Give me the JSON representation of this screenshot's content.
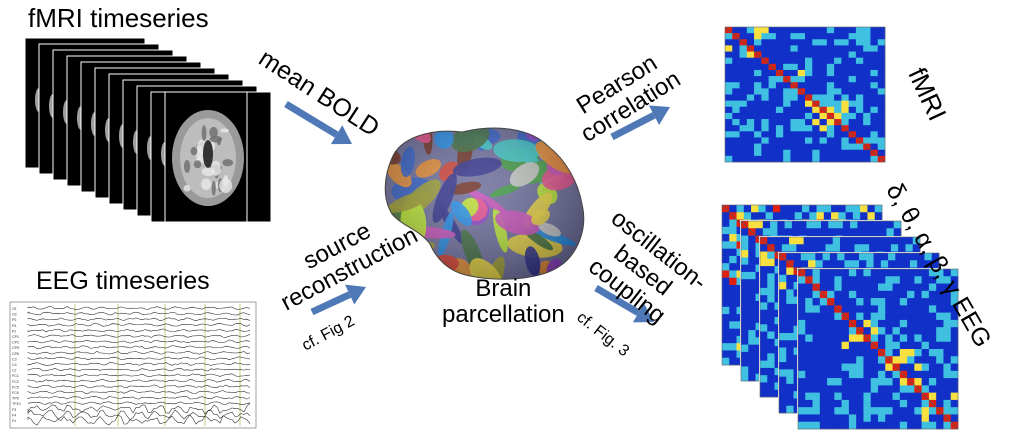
{
  "labels": {
    "fmri_timeseries": "fMRI timeseries",
    "eeg_timeseries": "EEG timeseries",
    "mean_bold": [
      "mean BOLD"
    ],
    "source_reconstruction": [
      "source",
      "reconstruction"
    ],
    "cf_fig2": "cf. Fig 2",
    "brain_parcellation": [
      "Brain",
      "parcellation"
    ],
    "pearson_correlation": [
      "Pearson",
      "correlation"
    ],
    "oscillation_coupling": [
      "oscillation-",
      "based",
      "coupling"
    ],
    "cf_fig3": "cf. Fig. 3",
    "fmri_matrix": "fMRI",
    "eeg_matrix": "δ, θ, α, β, γ EEG"
  },
  "eeg_channels": [
    "O1",
    "O2",
    "P3",
    "P4",
    "Pz",
    "CP1",
    "CP2",
    "CP5",
    "CP6",
    "C3",
    "C4",
    "Cz",
    "FC1",
    "FC2",
    "FC5",
    "FC6",
    "TP9",
    "TP10",
    "F3",
    "F4",
    "Fz"
  ],
  "colors": {
    "arrow": "#4f78b7",
    "matrix_low": "#1030c8",
    "matrix_mid": "#40c0e0",
    "matrix_high": "#f8e040",
    "matrix_peak": "#e02010"
  }
}
